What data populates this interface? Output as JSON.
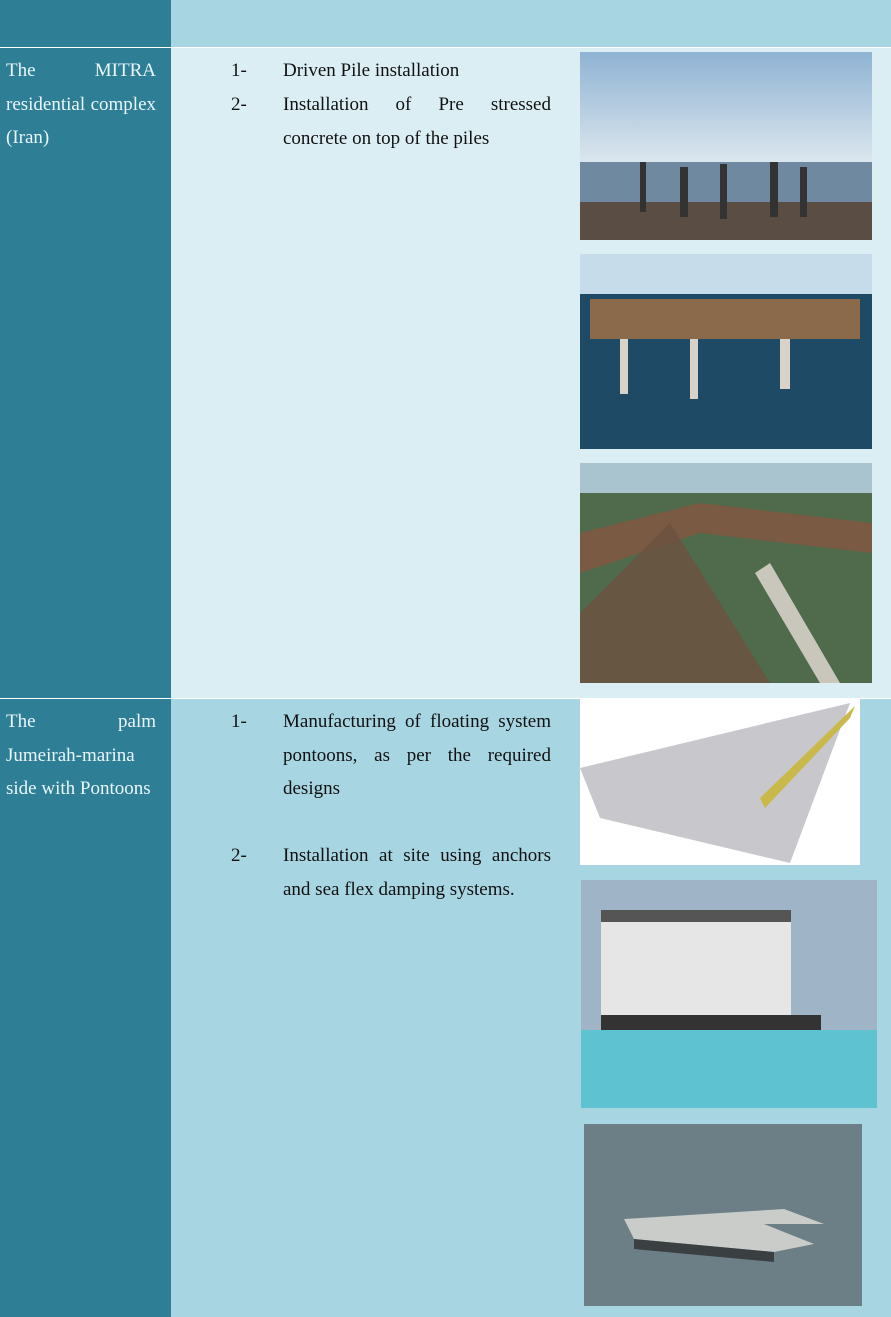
{
  "table": {
    "rows": [
      {
        "name": "The MITRA residential complex (Iran)",
        "steps": [
          {
            "number": "1-",
            "text": "Driven Pile installation"
          },
          {
            "number": "2-",
            "text": "Installation of Pre stressed concrete on top of the piles"
          }
        ]
      },
      {
        "name": "The palm Jumeirah-marina side with Pontoons",
        "steps": [
          {
            "number": "1-",
            "text": "Manufacturing of floating system pontoons, as per the required designs"
          },
          {
            "number": "2-",
            "text": "Installation at site using anchors and sea flex damping systems."
          }
        ]
      }
    ]
  }
}
